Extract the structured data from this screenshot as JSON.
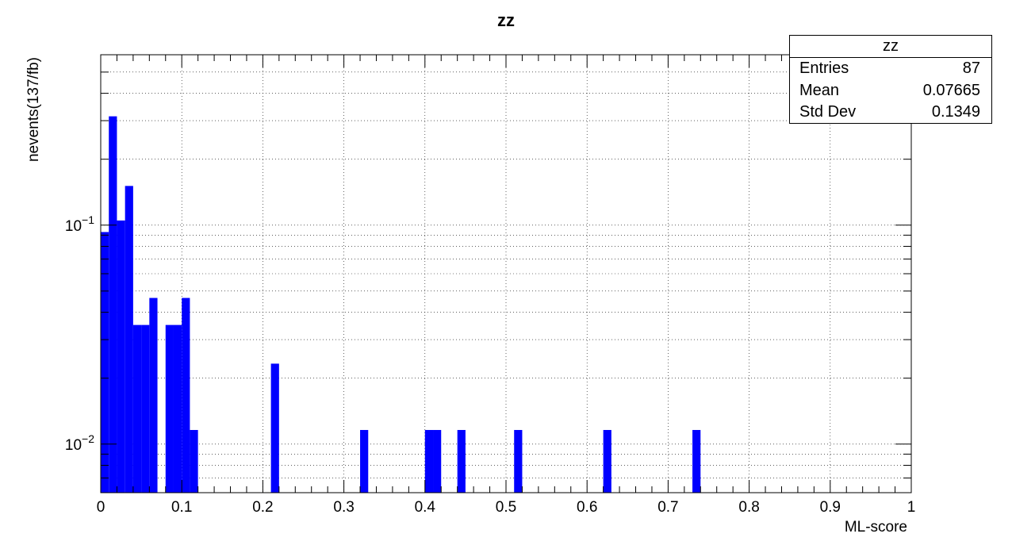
{
  "chart_data": {
    "type": "bar",
    "title": "zz",
    "xlabel": "ML-score",
    "ylabel": "nevents(137/fb)",
    "xlim": [
      0,
      1
    ],
    "ylim": [
      0.006,
      0.6
    ],
    "y_scale": "log",
    "grid": true,
    "bin_width": 0.01,
    "bar_color": "#0000ff",
    "x_ticks": [
      "0",
      "0.1",
      "0.2",
      "0.3",
      "0.4",
      "0.5",
      "0.6",
      "0.7",
      "0.8",
      "0.9",
      "1"
    ],
    "y_tick_labels": [
      {
        "base": "10",
        "exp": "−1",
        "value": 0.1
      },
      {
        "base": "10",
        "exp": "−2",
        "value": 0.01
      }
    ],
    "bins": [
      {
        "x": 0.0,
        "y": 0.093
      },
      {
        "x": 0.01,
        "y": 0.314
      },
      {
        "x": 0.02,
        "y": 0.105
      },
      {
        "x": 0.03,
        "y": 0.151
      },
      {
        "x": 0.04,
        "y": 0.035
      },
      {
        "x": 0.05,
        "y": 0.035
      },
      {
        "x": 0.06,
        "y": 0.0465
      },
      {
        "x": 0.08,
        "y": 0.035
      },
      {
        "x": 0.09,
        "y": 0.035
      },
      {
        "x": 0.1,
        "y": 0.0465
      },
      {
        "x": 0.11,
        "y": 0.0116
      },
      {
        "x": 0.21,
        "y": 0.0233
      },
      {
        "x": 0.32,
        "y": 0.0116
      },
      {
        "x": 0.4,
        "y": 0.0116
      },
      {
        "x": 0.41,
        "y": 0.0116
      },
      {
        "x": 0.44,
        "y": 0.0116
      },
      {
        "x": 0.51,
        "y": 0.0116
      },
      {
        "x": 0.62,
        "y": 0.0116
      },
      {
        "x": 0.73,
        "y": 0.0116
      }
    ]
  },
  "stats": {
    "name": "zz",
    "rows": [
      {
        "label": "Entries",
        "value": "87"
      },
      {
        "label": "Mean",
        "value": "0.07665"
      },
      {
        "label": "Std Dev",
        "value": "0.1349"
      }
    ]
  }
}
